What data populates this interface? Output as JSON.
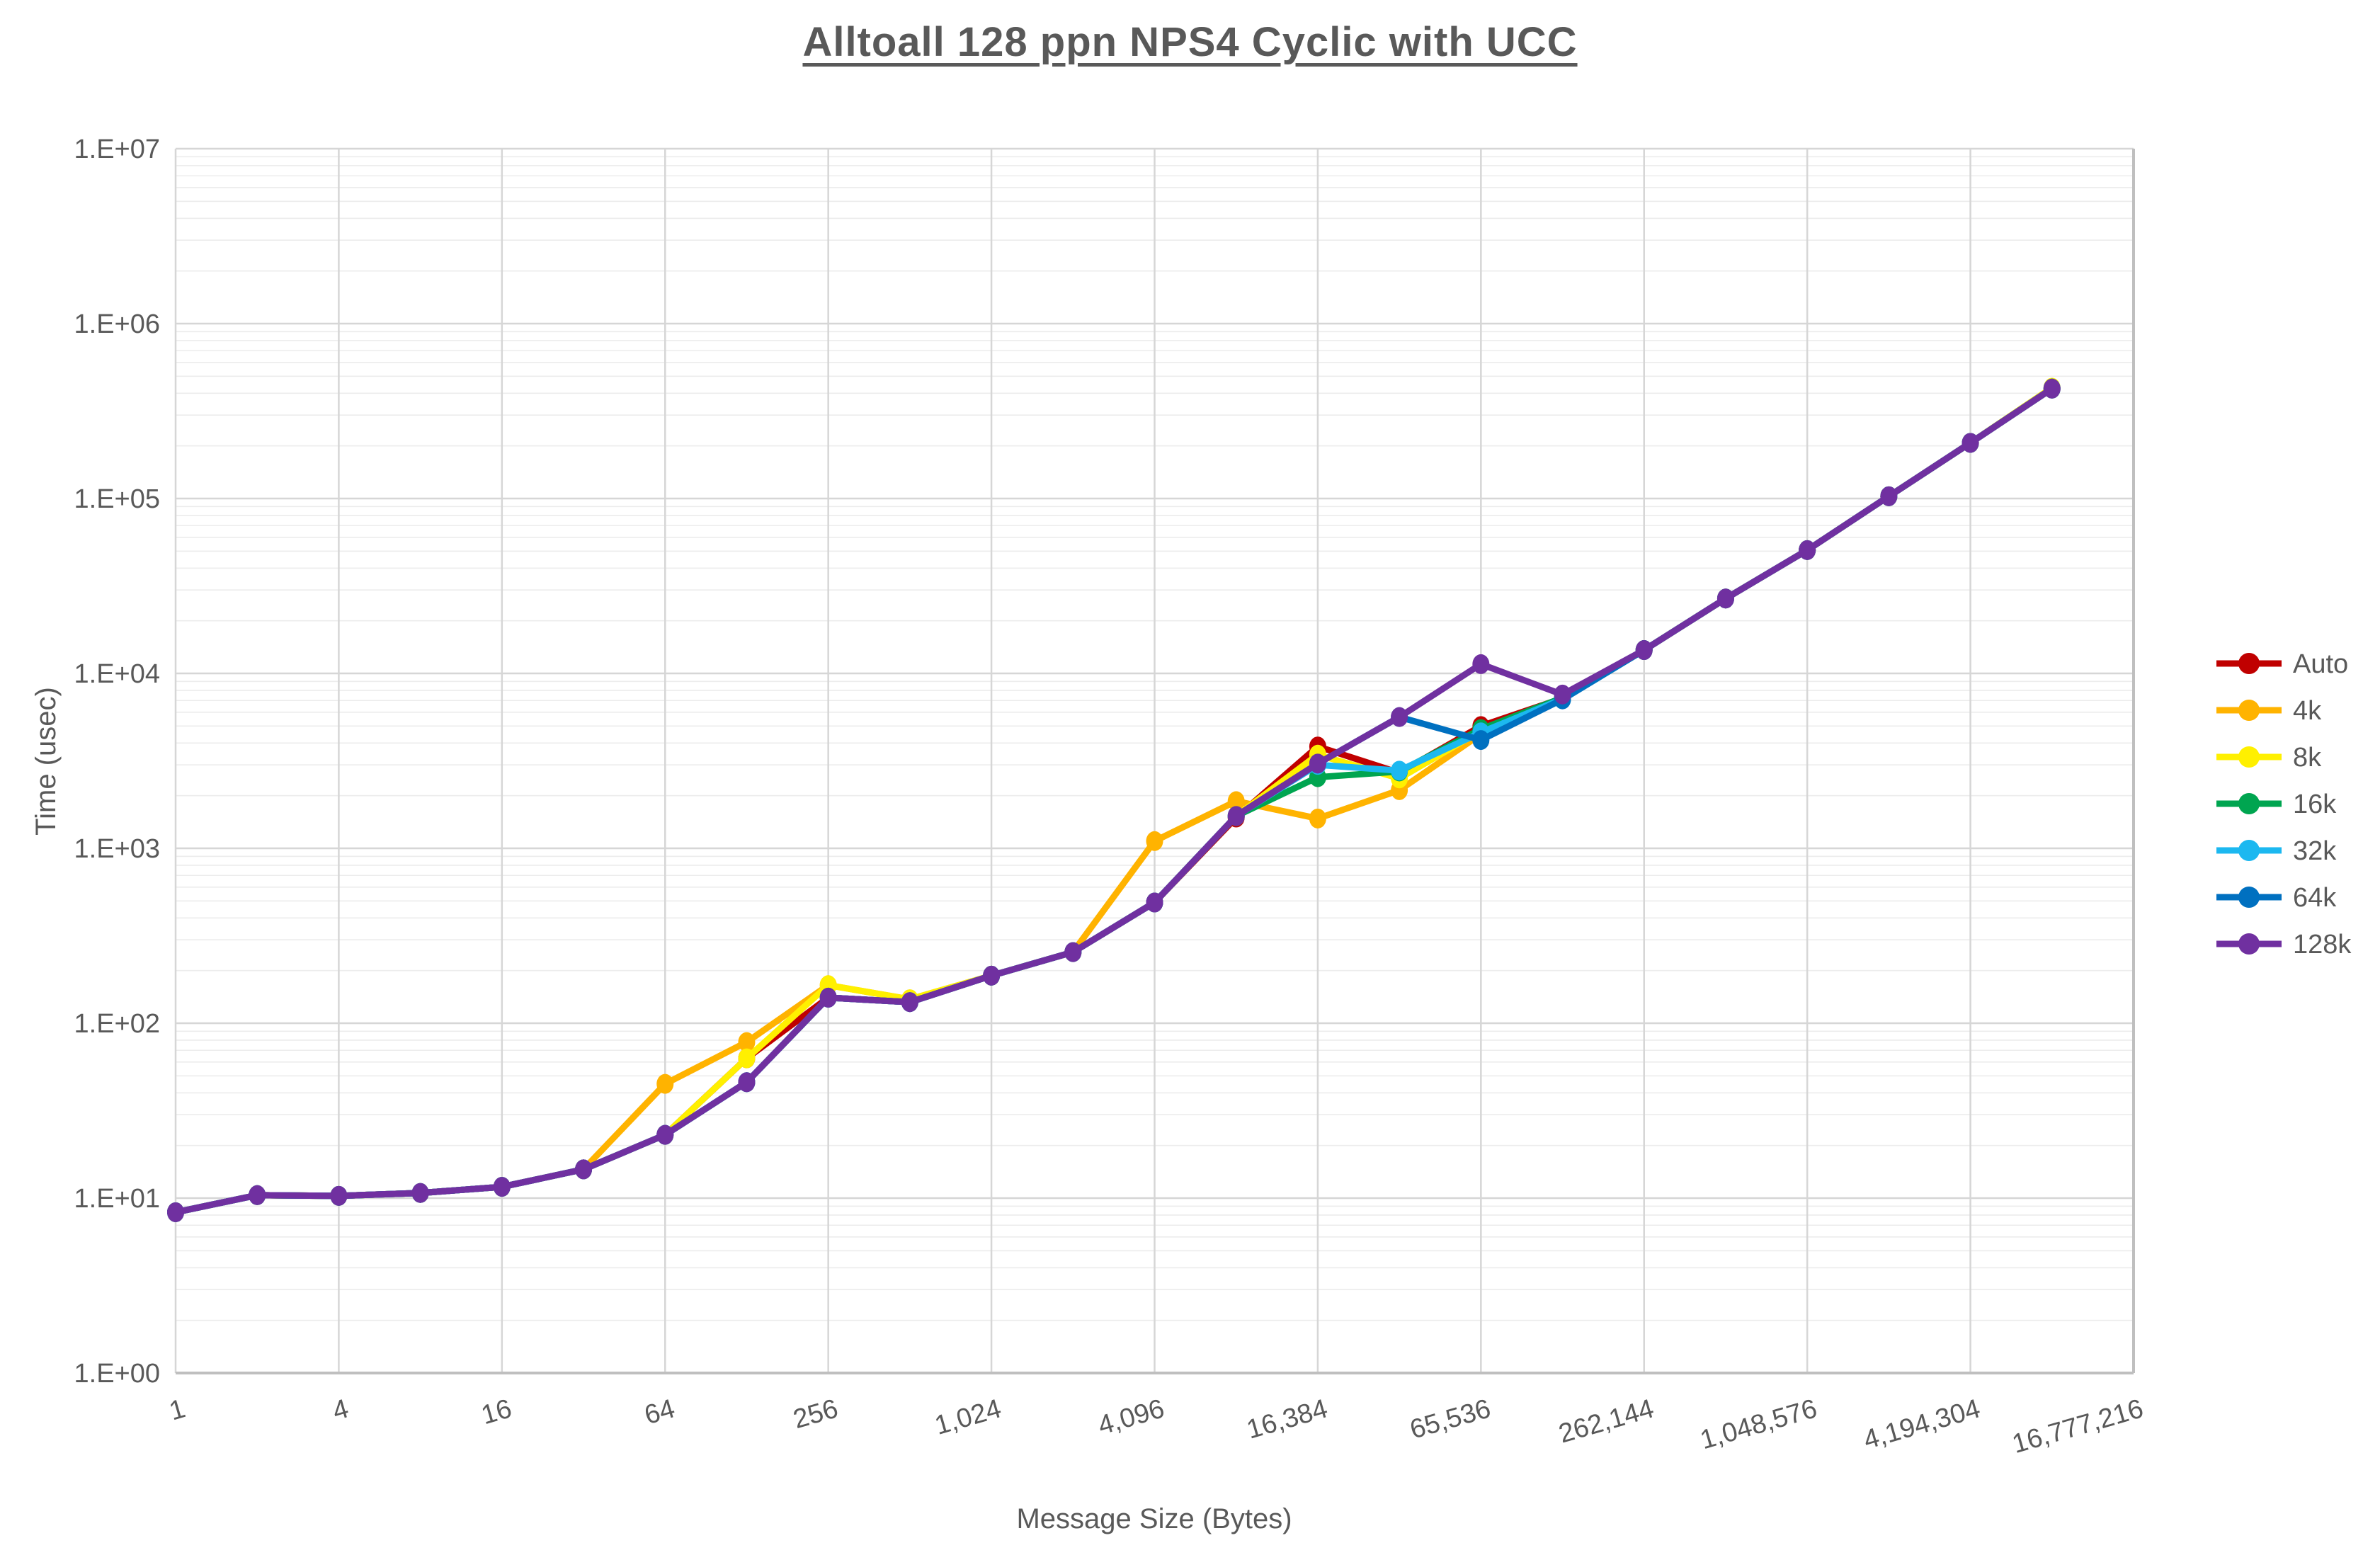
{
  "page": {
    "background": "#FFFFFF"
  },
  "colors": {
    "text": "#595959",
    "grid_major": "#D6D6D6",
    "grid_minor": "#ECECEC",
    "axis_line": "#BFBFBF"
  },
  "chart_data": {
    "type": "line",
    "title": "Alltoall 128 ppn NPS4 Cyclic with UCC",
    "xlabel": "Message Size (Bytes)",
    "ylabel": "Time (usec)",
    "x_scale": "log2-categorical",
    "y_scale": "log10",
    "y_range_exp": [
      0,
      7
    ],
    "y_tick_labels": [
      "1.E+00",
      "1.E+01",
      "1.E+02",
      "1.E+03",
      "1.E+04",
      "1.E+05",
      "1.E+06",
      "1.E+07"
    ],
    "x_categories": [
      1,
      2,
      4,
      8,
      16,
      32,
      64,
      128,
      256,
      512,
      1024,
      2048,
      4096,
      8192,
      16384,
      32768,
      65536,
      131072,
      262144,
      524288,
      1048576,
      2097152,
      4194304,
      8388608,
      16777216
    ],
    "x_tick_labels": [
      {
        "index": 0,
        "label": "1"
      },
      {
        "index": 2,
        "label": "4"
      },
      {
        "index": 4,
        "label": "16"
      },
      {
        "index": 6,
        "label": "64"
      },
      {
        "index": 8,
        "label": "256"
      },
      {
        "index": 10,
        "label": "1,024"
      },
      {
        "index": 12,
        "label": "4,096"
      },
      {
        "index": 14,
        "label": "16,384"
      },
      {
        "index": 16,
        "label": "65,536"
      },
      {
        "index": 18,
        "label": "262,144"
      },
      {
        "index": 20,
        "label": "1,048,576"
      },
      {
        "index": 22,
        "label": "4,194,304"
      },
      {
        "index": 24,
        "label": "16,777,216"
      }
    ],
    "grid": {
      "major": true,
      "minor": true
    },
    "legend_position": "right",
    "series": [
      {
        "name": "Auto",
        "color": "#C00000",
        "values": [
          8.3,
          10.4,
          10.3,
          10.7,
          11.6,
          14.6,
          23,
          63,
          140,
          132,
          187,
          255,
          490,
          1500,
          3820,
          2700,
          5000,
          7200,
          13600,
          26800,
          50700,
          103000,
          208000,
          425000,
          null
        ]
      },
      {
        "name": "4k",
        "color": "#FFB300",
        "values": [
          8.3,
          10.4,
          10.3,
          10.7,
          11.6,
          14.6,
          45,
          78,
          165,
          137,
          187,
          255,
          1100,
          1860,
          1480,
          2150,
          4500,
          7200,
          13600,
          26800,
          50700,
          103000,
          208000,
          425000,
          null
        ]
      },
      {
        "name": "8k",
        "color": "#FFF000",
        "values": [
          8.3,
          10.4,
          10.3,
          10.7,
          11.6,
          14.6,
          23,
          63,
          165,
          137,
          187,
          255,
          490,
          1530,
          3430,
          2510,
          4700,
          7250,
          13600,
          26800,
          50700,
          103000,
          208000,
          430000,
          null
        ]
      },
      {
        "name": "16k",
        "color": "#00A550",
        "values": [
          8.3,
          10.4,
          10.3,
          10.7,
          11.6,
          14.6,
          23,
          46,
          140,
          132,
          187,
          255,
          490,
          1530,
          2550,
          2750,
          4800,
          7250,
          13600,
          26800,
          50700,
          103000,
          208000,
          425000,
          null
        ]
      },
      {
        "name": "32k",
        "color": "#1CB8F0",
        "values": [
          8.3,
          10.4,
          10.3,
          10.7,
          11.6,
          14.6,
          23,
          46,
          140,
          132,
          187,
          255,
          490,
          1530,
          3000,
          2780,
          4600,
          7150,
          13600,
          26800,
          50700,
          103000,
          208000,
          425000,
          null
        ]
      },
      {
        "name": "64k",
        "color": "#0070C0",
        "values": [
          8.3,
          10.4,
          10.3,
          10.7,
          11.6,
          14.6,
          23,
          46,
          140,
          132,
          187,
          255,
          490,
          1530,
          3050,
          5630,
          4160,
          7100,
          13600,
          26800,
          50700,
          103000,
          208000,
          425000,
          null
        ]
      },
      {
        "name": "128k",
        "color": "#7030A0",
        "values": [
          8.3,
          10.4,
          10.3,
          10.7,
          11.6,
          14.6,
          23,
          46,
          140,
          132,
          187,
          255,
          490,
          1530,
          3050,
          5630,
          11300,
          7570,
          13600,
          26800,
          50700,
          103000,
          208000,
          425000,
          null
        ]
      }
    ]
  }
}
